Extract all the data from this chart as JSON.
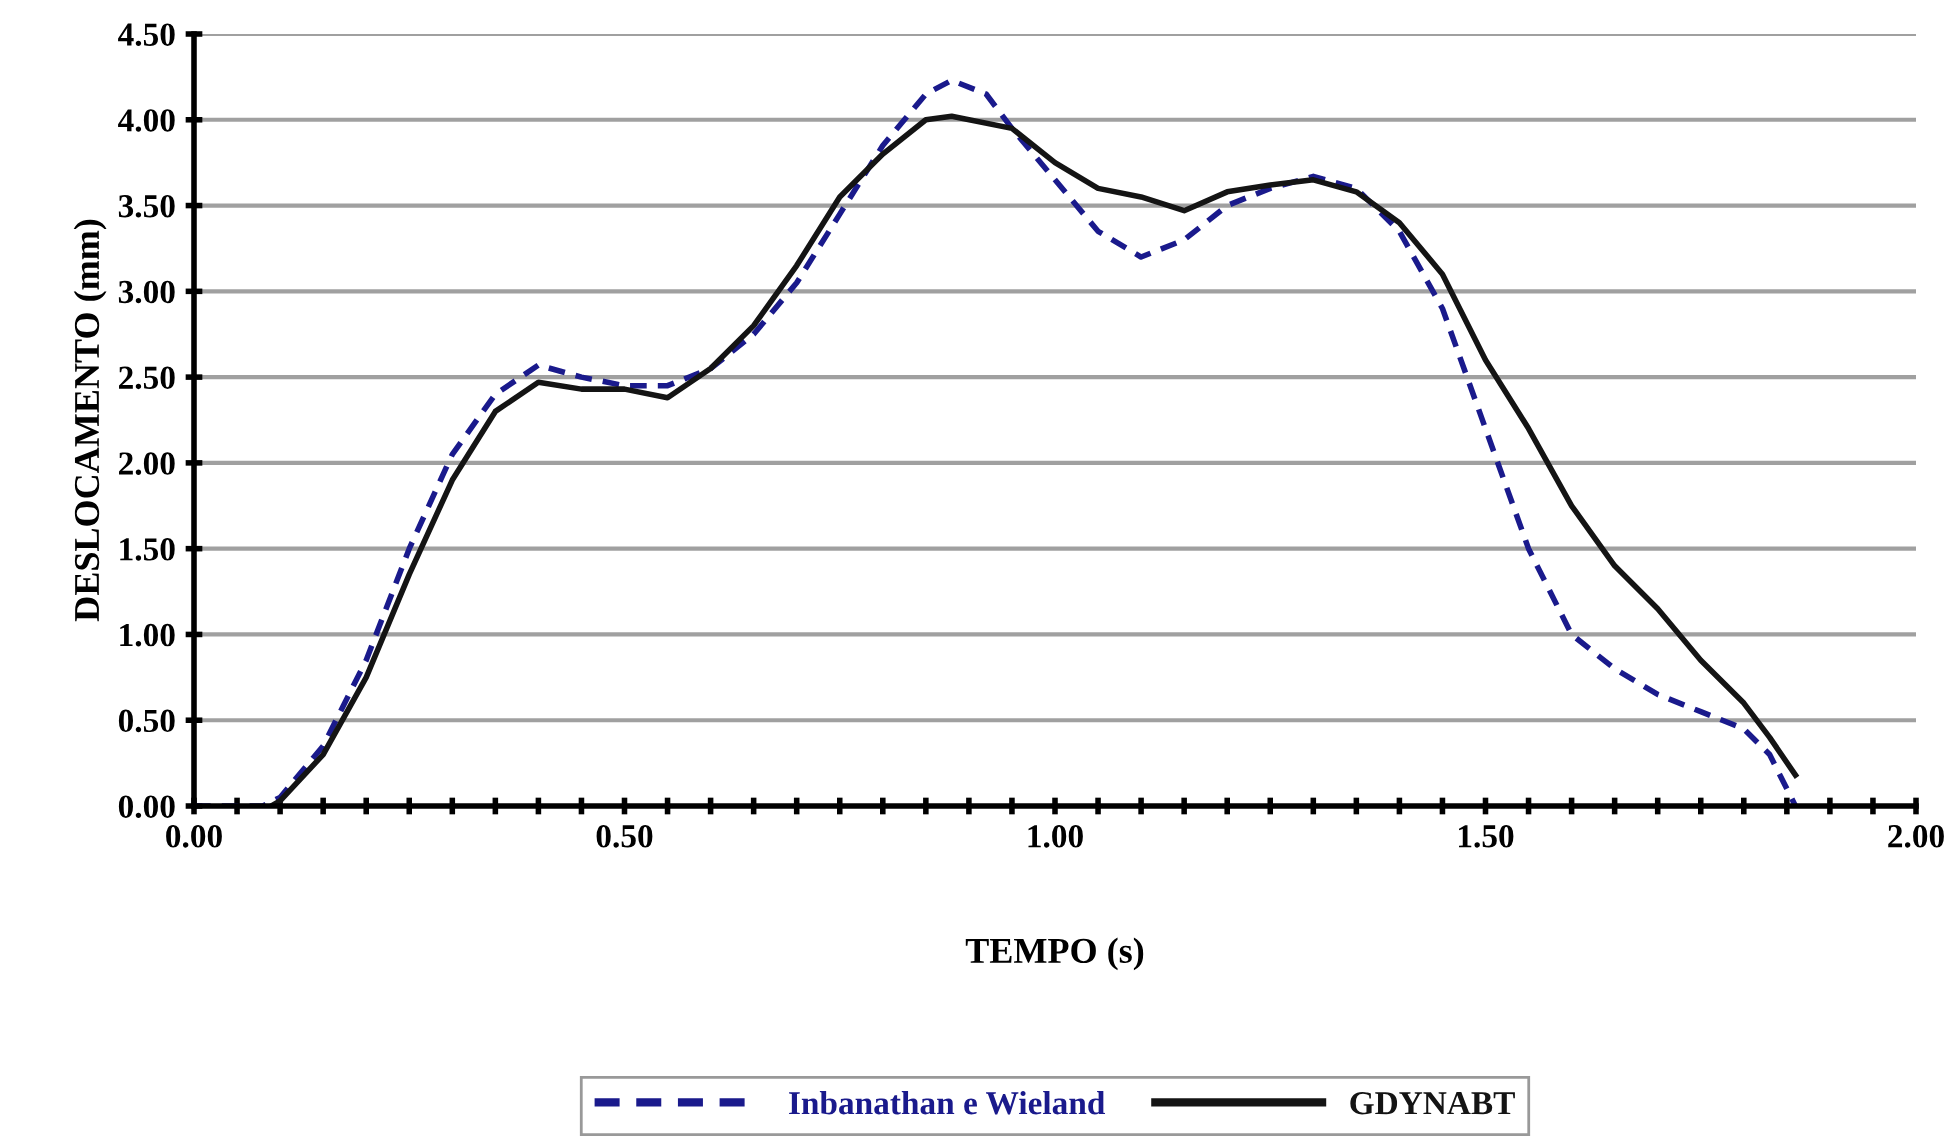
{
  "chart_data": {
    "type": "line",
    "xlabel": "TEMPO (s)",
    "ylabel": "DESLOCAMENTO (mm)",
    "xlim": [
      0,
      2
    ],
    "xticks": [
      {
        "value": 0,
        "label": "0.00"
      },
      {
        "value": 0.5,
        "label": "0.50"
      },
      {
        "value": 1,
        "label": "1.00"
      },
      {
        "value": 1.5,
        "label": "1.50"
      },
      {
        "value": 2,
        "label": "2.00"
      }
    ],
    "ylim": [
      0,
      4.5
    ],
    "yticks": [
      {
        "value": 0,
        "label": "0.00"
      },
      {
        "value": 0.5,
        "label": "0.50"
      },
      {
        "value": 1,
        "label": "1.00"
      },
      {
        "value": 1.5,
        "label": "1.50"
      },
      {
        "value": 2,
        "label": "2.00"
      },
      {
        "value": 2.5,
        "label": "2.50"
      },
      {
        "value": 3,
        "label": "3.00"
      },
      {
        "value": 3.5,
        "label": "3.50"
      },
      {
        "value": 4,
        "label": "4.00"
      },
      {
        "value": 4.5,
        "label": "4.50"
      }
    ],
    "grid": "y",
    "legend": "bottom",
    "marker": "none",
    "series": [
      {
        "name": "Inbanathan e Wieland",
        "color": "#1a1a8c",
        "line_style": "dashed",
        "x": [
          0,
          0.08,
          0.1,
          0.15,
          0.2,
          0.25,
          0.3,
          0.35,
          0.4,
          0.45,
          0.5,
          0.55,
          0.6,
          0.65,
          0.7,
          0.75,
          0.8,
          0.85,
          0.88,
          0.92,
          0.95,
          1.0,
          1.05,
          1.1,
          1.15,
          1.2,
          1.25,
          1.3,
          1.35,
          1.4,
          1.45,
          1.5,
          1.55,
          1.6,
          1.65,
          1.7,
          1.75,
          1.8,
          1.83,
          1.86
        ],
        "values": [
          0,
          0,
          0.05,
          0.35,
          0.85,
          1.5,
          2.05,
          2.4,
          2.57,
          2.5,
          2.45,
          2.45,
          2.55,
          2.75,
          3.05,
          3.45,
          3.85,
          4.15,
          4.23,
          4.15,
          3.95,
          3.65,
          3.35,
          3.2,
          3.3,
          3.5,
          3.6,
          3.67,
          3.6,
          3.35,
          2.9,
          2.2,
          1.5,
          1.0,
          0.8,
          0.65,
          0.55,
          0.45,
          0.3,
          0
        ]
      },
      {
        "name": "GDYNABT",
        "color": "#141414",
        "line_style": "solid",
        "x": [
          0.09,
          0.1,
          0.15,
          0.2,
          0.25,
          0.3,
          0.35,
          0.4,
          0.45,
          0.5,
          0.55,
          0.6,
          0.65,
          0.7,
          0.75,
          0.8,
          0.85,
          0.88,
          0.95,
          1.0,
          1.05,
          1.1,
          1.15,
          1.2,
          1.25,
          1.3,
          1.35,
          1.4,
          1.45,
          1.5,
          1.55,
          1.6,
          1.65,
          1.7,
          1.75,
          1.8,
          1.83,
          1.86
        ],
        "values": [
          0,
          0.03,
          0.3,
          0.75,
          1.35,
          1.9,
          2.3,
          2.47,
          2.43,
          2.43,
          2.38,
          2.55,
          2.8,
          3.15,
          3.55,
          3.8,
          4.0,
          4.02,
          3.95,
          3.75,
          3.6,
          3.55,
          3.47,
          3.58,
          3.62,
          3.65,
          3.58,
          3.4,
          3.1,
          2.6,
          2.2,
          1.75,
          1.4,
          1.15,
          0.85,
          0.6,
          0.4,
          0.18
        ]
      }
    ]
  }
}
